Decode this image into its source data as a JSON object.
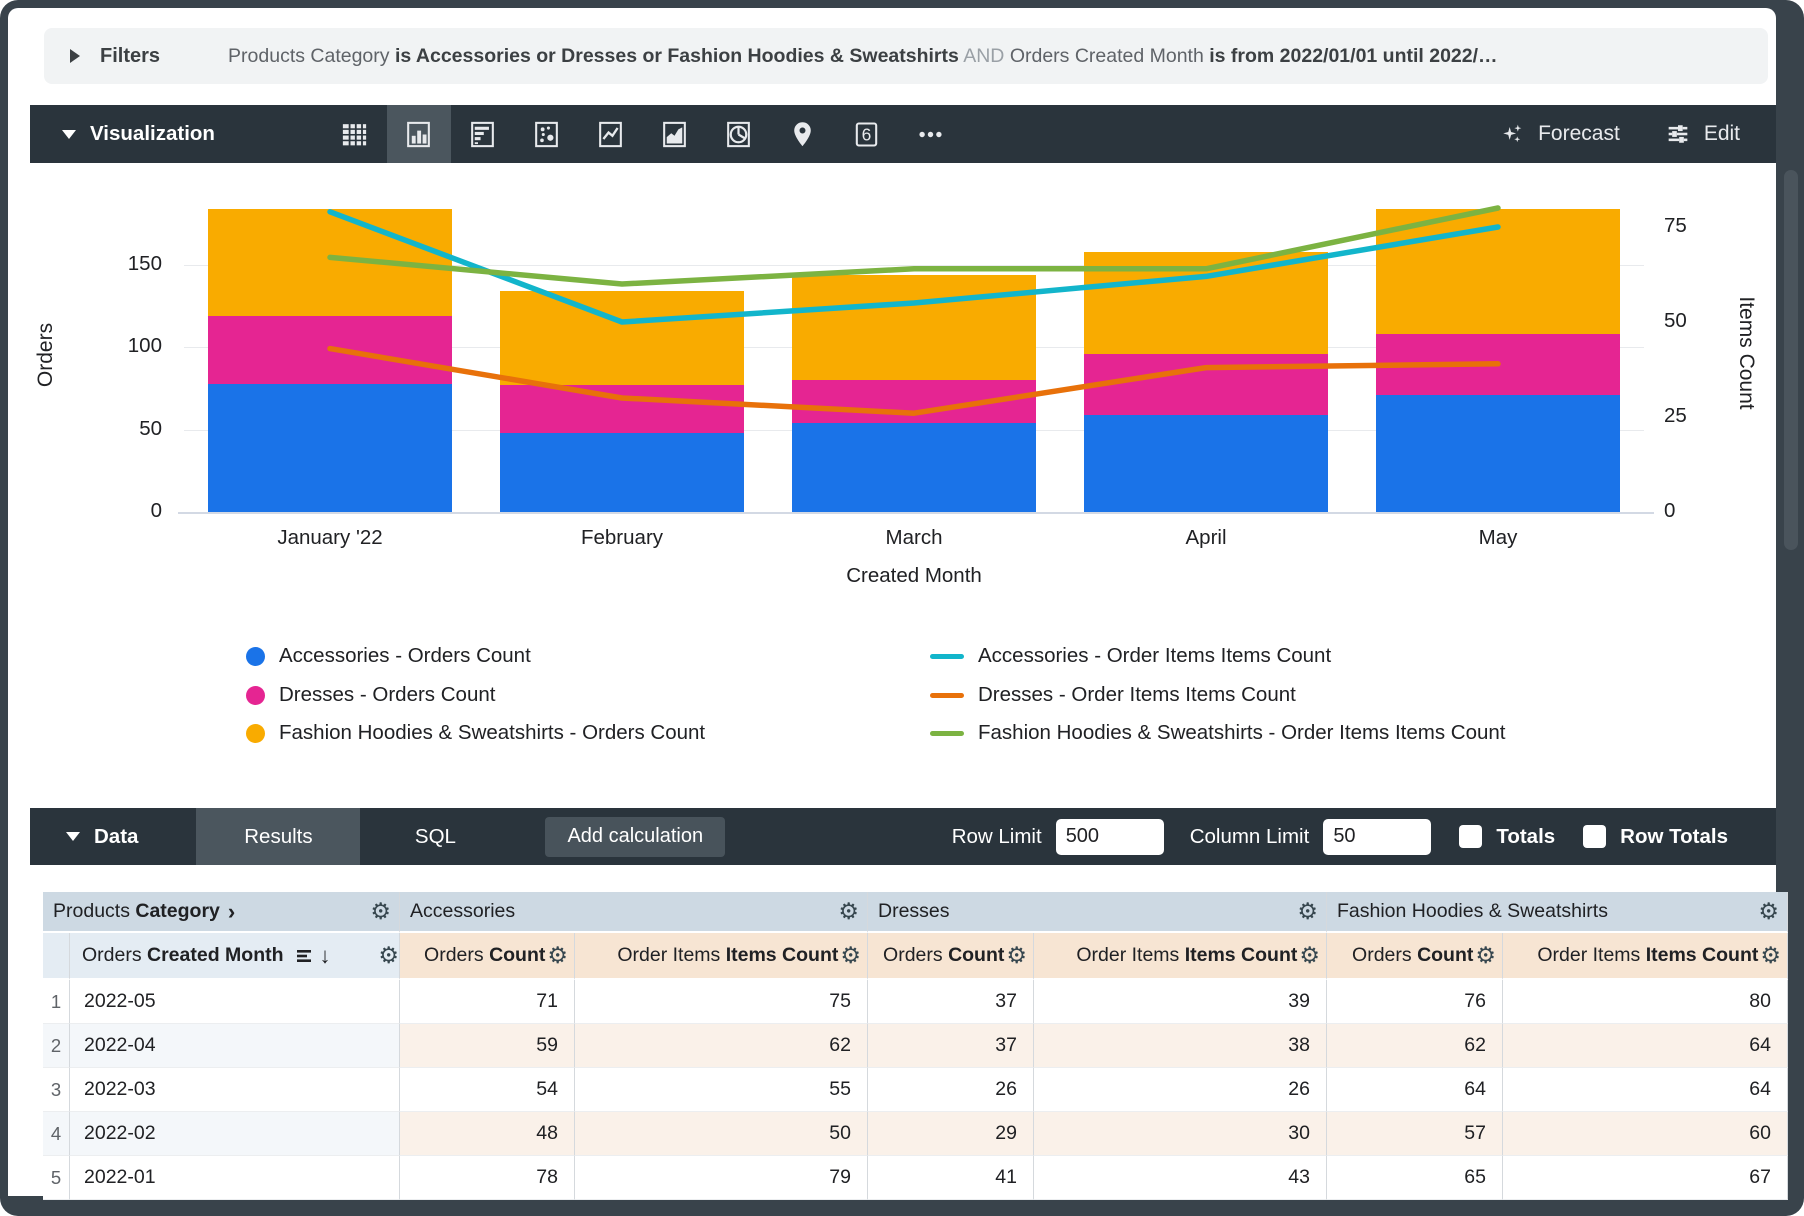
{
  "filters_bar": {
    "label": "Filters",
    "expression": [
      {
        "text": "Products Category ",
        "style": "dim"
      },
      {
        "text": "is Accessories or Dresses or Fashion Hoodies & Sweatshirts",
        "style": "strong"
      },
      {
        "text": " AND ",
        "style": "faint"
      },
      {
        "text": "Orders Created Month ",
        "style": "dim"
      },
      {
        "text": "is from 2022/01/01 until 2022/…",
        "style": "strong"
      }
    ]
  },
  "viz_toolbar": {
    "title": "Visualization",
    "icons": [
      {
        "name": "table-icon",
        "selected": false
      },
      {
        "name": "column-chart-icon",
        "selected": true
      },
      {
        "name": "bar-chart-icon",
        "selected": false
      },
      {
        "name": "scatter-chart-icon",
        "selected": false
      },
      {
        "name": "line-chart-icon",
        "selected": false
      },
      {
        "name": "area-chart-icon",
        "selected": false
      },
      {
        "name": "pie-chart-icon",
        "selected": false
      },
      {
        "name": "map-pin-icon",
        "selected": false
      },
      {
        "name": "single-value-icon",
        "selected": false,
        "glyph": "6"
      },
      {
        "name": "more-icon",
        "selected": false
      }
    ],
    "forecast_label": "Forecast",
    "edit_label": "Edit"
  },
  "chart_data": {
    "type": "combo stacked-bar + line",
    "categories": [
      "January '22",
      "February",
      "March",
      "April",
      "May"
    ],
    "bar_series": [
      {
        "name": "Accessories - Orders Count",
        "color": "#1A73E8",
        "values": [
          78,
          48,
          54,
          59,
          71
        ]
      },
      {
        "name": "Dresses - Orders Count",
        "color": "#E52592",
        "values": [
          41,
          29,
          26,
          37,
          37
        ]
      },
      {
        "name": "Fashion Hoodies & Sweatshirts - Orders Count",
        "color": "#F9AB00",
        "values": [
          65,
          57,
          64,
          62,
          76
        ]
      }
    ],
    "line_series": [
      {
        "name": "Accessories - Order Items Items Count",
        "color": "#12B5CB",
        "values": [
          79,
          50,
          55,
          62,
          75
        ]
      },
      {
        "name": "Dresses - Order Items Items Count",
        "color": "#E8710A",
        "values": [
          43,
          30,
          26,
          38,
          39
        ]
      },
      {
        "name": "Fashion Hoodies & Sweatshirts - Order Items Items Count",
        "color": "#7CB342",
        "values": [
          67,
          60,
          64,
          64,
          80
        ]
      }
    ],
    "left_axis": {
      "label": "Orders",
      "ticks": [
        0,
        50,
        100,
        150
      ]
    },
    "right_axis": {
      "label": "Items Count",
      "ticks": [
        0,
        25,
        50,
        75
      ]
    },
    "x_axis_label": "Created Month",
    "legend_position": "bottom",
    "grid": "horizontal-left-ticks"
  },
  "data_toolbar": {
    "title": "Data",
    "tabs": [
      {
        "label": "Results",
        "selected": true
      },
      {
        "label": "SQL",
        "selected": false
      }
    ],
    "add_calculation_label": "Add calculation",
    "row_limit_label": "Row Limit",
    "row_limit_value": "500",
    "column_limit_label": "Column Limit",
    "column_limit_value": "50",
    "totals_label": "Totals",
    "totals_checked": false,
    "row_totals_label": "Row Totals",
    "row_totals_checked": false
  },
  "table": {
    "dimension_group": {
      "regular": "Products ",
      "bold": "Category",
      "chevron": "›"
    },
    "dimension_col": {
      "regular": "Orders ",
      "bold": "Created Month"
    },
    "measure_groups": [
      "Accessories",
      "Dresses",
      "Fashion Hoodies & Sweatshirts"
    ],
    "measure_cols": [
      {
        "regular": "Orders ",
        "bold": "Count"
      },
      {
        "regular": "Order Items ",
        "bold": "Items Count"
      }
    ],
    "rows": [
      {
        "num": "1",
        "dim": "2022-05",
        "values": [
          71,
          75,
          37,
          39,
          76,
          80
        ]
      },
      {
        "num": "2",
        "dim": "2022-04",
        "values": [
          59,
          62,
          37,
          38,
          62,
          64
        ]
      },
      {
        "num": "3",
        "dim": "2022-03",
        "values": [
          54,
          55,
          26,
          26,
          64,
          64
        ]
      },
      {
        "num": "4",
        "dim": "2022-02",
        "values": [
          48,
          50,
          29,
          30,
          57,
          60
        ]
      },
      {
        "num": "5",
        "dim": "2022-01",
        "values": [
          78,
          79,
          41,
          43,
          65,
          67
        ]
      }
    ]
  }
}
